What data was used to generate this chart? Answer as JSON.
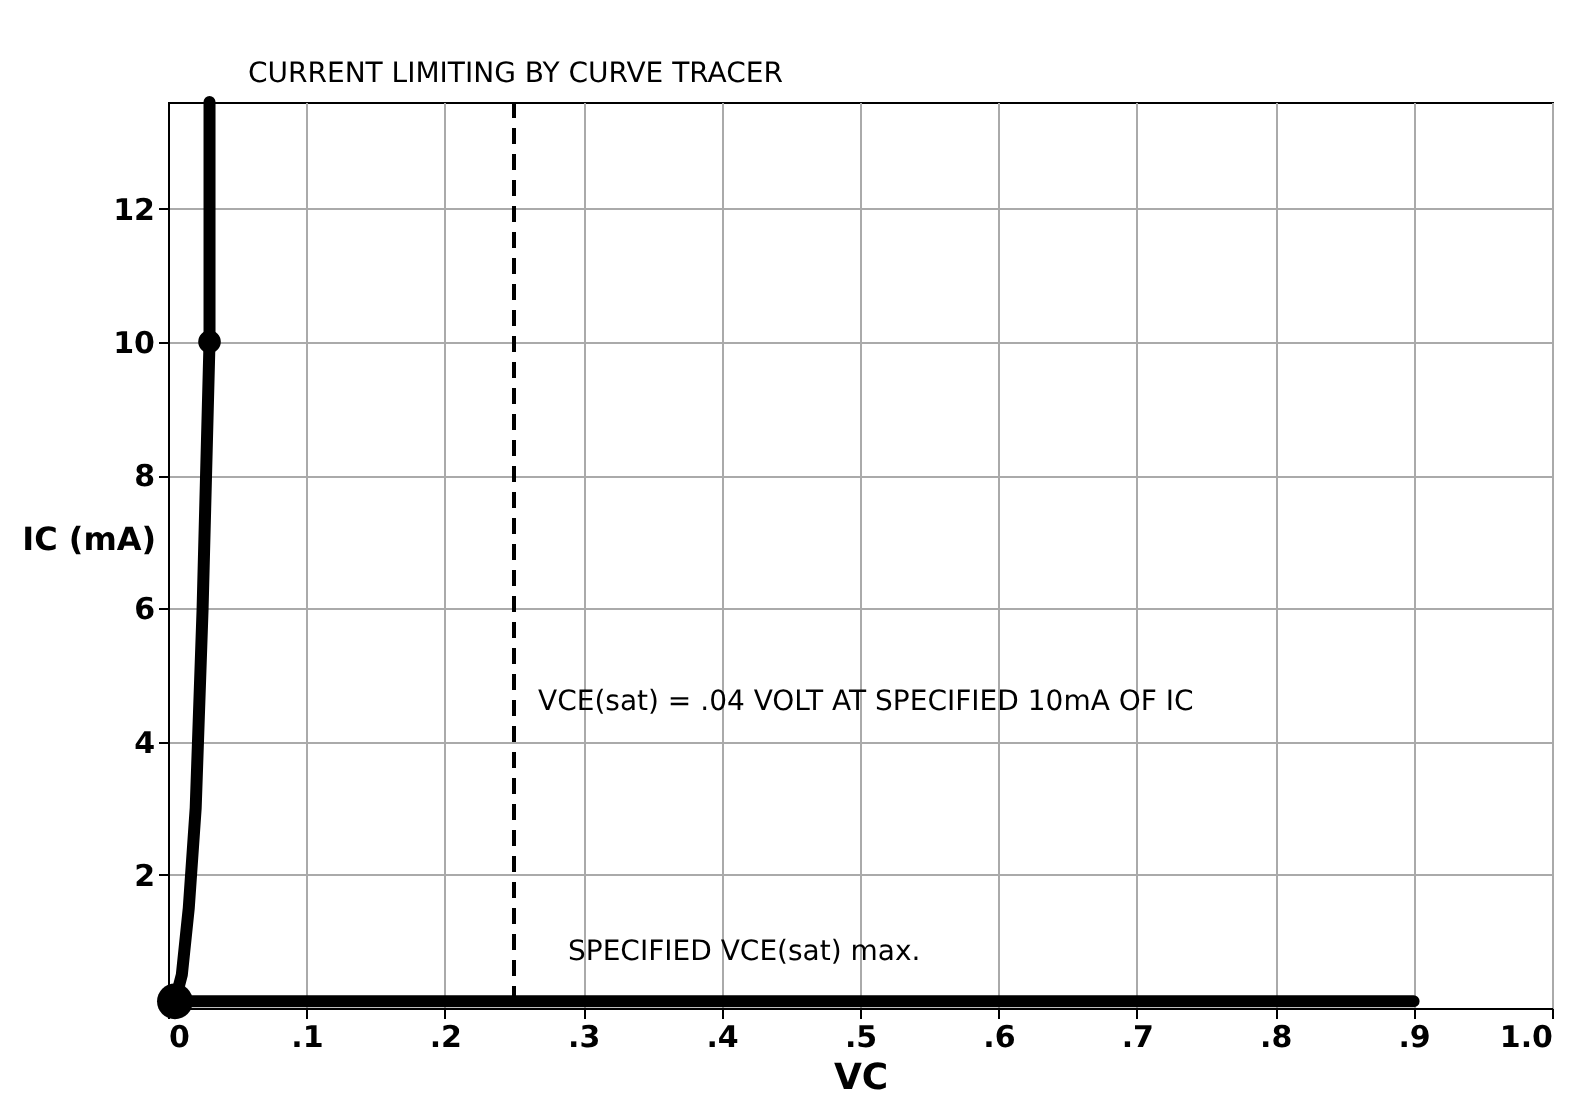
{
  "chart_data": {
    "type": "line",
    "xlabel": "VC",
    "ylabel": "IC (mA)",
    "xlim": [
      0,
      1.0
    ],
    "ylim": [
      0,
      13.6
    ],
    "xticks": [
      0,
      {
        "value": 0.1,
        "label": ".1"
      },
      {
        "value": 0.2,
        "label": ".2"
      },
      {
        "value": 0.3,
        "label": ".3"
      },
      {
        "value": 0.4,
        "label": ".4"
      },
      {
        "value": 0.5,
        "label": ".5"
      },
      {
        "value": 0.6,
        "label": ".6"
      },
      {
        "value": 0.7,
        "label": ".7"
      },
      {
        "value": 0.8,
        "label": ".8"
      },
      {
        "value": 0.9,
        "label": ".9"
      },
      {
        "value": 1.0,
        "label": "1.0"
      }
    ],
    "yticks": [
      2,
      4,
      6,
      8,
      10,
      12
    ],
    "grid": true,
    "series": [
      {
        "color": "#000000",
        "marker": "none",
        "line_style": "solid",
        "x": [
          0.03,
          0.03,
          0.025,
          0.02,
          0.015,
          0.01,
          0.005,
          0.3,
          0.6,
          0.9
        ],
        "values": [
          13.6,
          10,
          6,
          3,
          1.5,
          0.5,
          0.1,
          0.1,
          0.1,
          0.1
        ]
      },
      {
        "type": "scatter",
        "color": "#000000",
        "marker": "circle",
        "x": [
          0.005,
          0.03
        ],
        "values": [
          0.1,
          10
        ],
        "sizes": [
          1,
          0.4
        ]
      }
    ],
    "ref_lines": [
      {
        "axis": "x",
        "value": 0.25,
        "color": "#000000",
        "line_style": "dashed"
      }
    ],
    "annotations": [
      "CURRENT LIMITING BY CURVE TRACER",
      "VCE(sat) = .04 VOLT AT SPECIFIED 10mA OF IC",
      "SPECIFIED VCE(sat) max."
    ]
  }
}
